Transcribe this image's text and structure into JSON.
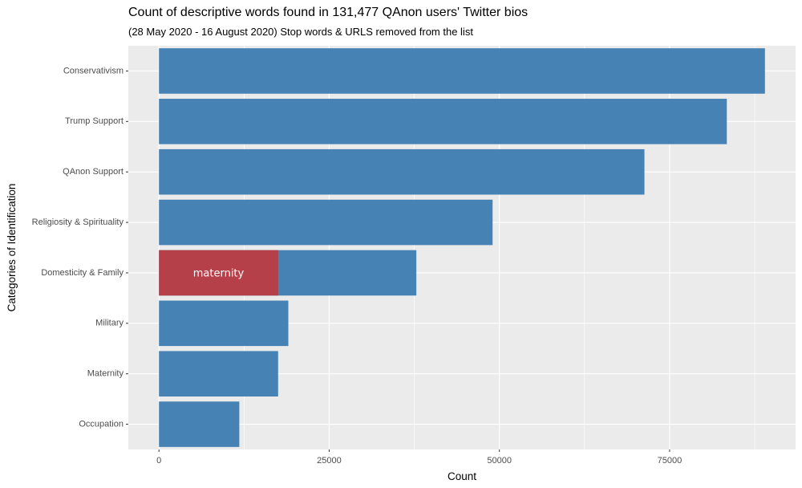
{
  "chart_data": {
    "type": "bar",
    "orientation": "horizontal",
    "title": "Count of descriptive words found in 131,477 QAnon users' Twitter bios",
    "subtitle": "(28 May 2020 - 16 August 2020) Stop words & URLS removed from the list",
    "xlabel": "Count",
    "ylabel": "Categories of Identification",
    "categories": [
      "Conservativism",
      "Trump Support",
      "QAnon Support",
      "Religiosity & Spirituality",
      "Domesticity & Family",
      "Military",
      "Maternity",
      "Occupation"
    ],
    "values": [
      89000,
      83400,
      71300,
      49000,
      37800,
      19000,
      17500,
      11800
    ],
    "highlight": {
      "category": "Domesticity & Family",
      "label": "maternity",
      "value": 17500,
      "color": "#B5404A"
    },
    "xlim": [
      -4500,
      93500
    ],
    "xticks": [
      0,
      25000,
      50000,
      75000
    ],
    "grid": true,
    "bar_color": "#4682B4",
    "panel_color": "#EBEBEB",
    "legend": "none"
  }
}
